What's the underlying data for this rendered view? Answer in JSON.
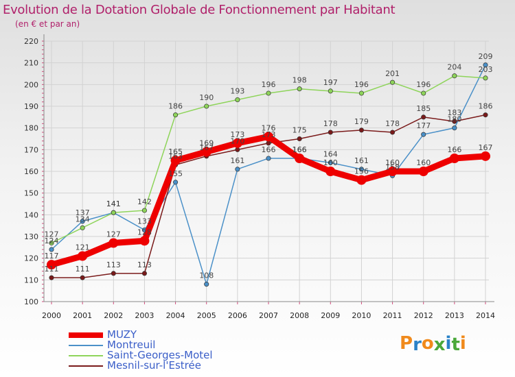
{
  "header": {
    "title": "Evolution de la Dotation Globale de Fonctionnement par Habitant",
    "subtitle": "(en € et par an)"
  },
  "logo": {
    "text": "Proxiti",
    "colors": [
      "#f08a1c",
      "#2a82c8",
      "#f08a1c",
      "#4aa83a",
      "#2a82c8",
      "#4aa83a",
      "#f08a1c"
    ]
  },
  "chart_data": {
    "type": "line",
    "title": "Evolution de la Dotation Globale de Fonctionnement par Habitant",
    "subtitle": "(en € et par an)",
    "xlabel": "",
    "ylabel": "",
    "ylim": [
      100,
      220
    ],
    "yticks": [
      100,
      110,
      120,
      130,
      140,
      150,
      160,
      170,
      180,
      190,
      200,
      210,
      220
    ],
    "grid": true,
    "legend": "bottom-left",
    "x": [
      "2000",
      "2001",
      "2002",
      "2003",
      "2004",
      "2005",
      "2006",
      "2007",
      "2008",
      "2009",
      "2010",
      "2011",
      "2012",
      "2013",
      "2014"
    ],
    "series": [
      {
        "name": "Montreuil",
        "color": "#4a90c8",
        "values": [
          124,
          137,
          141,
          133,
          155,
          108,
          161,
          166,
          166,
          164,
          161,
          158,
          177,
          180,
          209
        ]
      },
      {
        "name": "Saint-Georges-Motel",
        "color": "#8ed45a",
        "values": [
          127,
          134,
          141,
          142,
          186,
          190,
          193,
          196,
          198,
          197,
          196,
          201,
          196,
          204,
          203
        ]
      },
      {
        "name": "Mesnil-sur-l'Estrée",
        "color": "#7a1a1a",
        "values": [
          111,
          111,
          113,
          113,
          163,
          167,
          170,
          173,
          175,
          178,
          179,
          178,
          185,
          183,
          186
        ]
      },
      {
        "name": "MUZY",
        "color": "#ee0000",
        "values": [
          117,
          121,
          127,
          128,
          165,
          169,
          173,
          176,
          166,
          160,
          156,
          160,
          160,
          166,
          167
        ]
      }
    ],
    "value_labels": [
      {
        "series": "Montreuil",
        "values": [
          "124",
          "137",
          "141",
          "133",
          "155",
          "108",
          "161",
          "166",
          "166",
          "164",
          "161",
          "158",
          "177",
          "180",
          "209"
        ]
      },
      {
        "series": "Saint-Georges-Motel",
        "values": [
          "127",
          "134",
          "141",
          "142",
          "186",
          "190",
          "193",
          "196",
          "198",
          "197",
          "196",
          "201",
          "196",
          "204",
          "203"
        ]
      },
      {
        "series": "Mesnil-sur-l'Estrée",
        "values": [
          "111",
          "111",
          "113",
          "113",
          "163",
          "167",
          "170",
          "173",
          "175",
          "178",
          "179",
          "178",
          "185",
          "183",
          "186"
        ]
      },
      {
        "series": "MUZY",
        "values": [
          "117",
          "121",
          "127",
          "128",
          "165",
          "169",
          "173",
          "176",
          "166",
          "160",
          "156",
          "160",
          "160",
          "166",
          "167"
        ]
      }
    ]
  },
  "legend": {
    "items": [
      {
        "name": "MUZY",
        "color": "#ee0000",
        "width": 8
      },
      {
        "name": "Montreuil",
        "color": "#4a90c8",
        "width": 2
      },
      {
        "name": "Saint-Georges-Motel",
        "color": "#8ed45a",
        "width": 2
      },
      {
        "name": "Mesnil-sur-l'Estrée",
        "color": "#7a1a1a",
        "width": 2
      }
    ],
    "text_color": "#3a5ec8"
  }
}
